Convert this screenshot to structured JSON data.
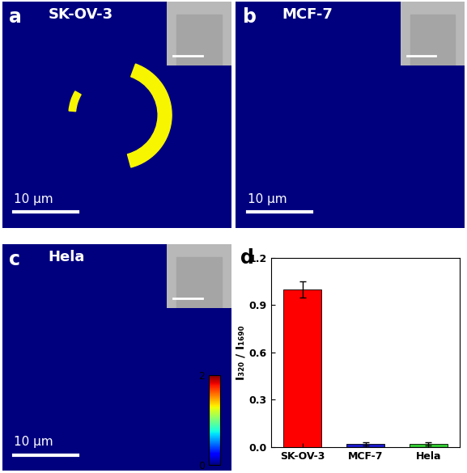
{
  "chart_data": [
    {
      "type": "heatmap",
      "panel": "a",
      "title": "SK-OV-3",
      "scale_bar": "10 μm",
      "signal": 1.3
    },
    {
      "type": "heatmap",
      "panel": "b",
      "title": "MCF-7",
      "scale_bar": "10 μm",
      "signal": null
    },
    {
      "type": "heatmap",
      "panel": "c",
      "title": "Hela",
      "scale_bar": "10 μm",
      "signal": null,
      "colorbar_range": [
        0,
        2
      ],
      "colorbar_ticks": [
        0,
        2
      ]
    },
    {
      "type": "bar",
      "panel": "d",
      "categories": [
        "SK-OV-3",
        "MCF-7",
        "Hela"
      ],
      "values": [
        1.0,
        0.02,
        0.02
      ],
      "errors": [
        0.05,
        0.01,
        0.01
      ],
      "colors": [
        "#ff0000",
        "#1a1acc",
        "#33cc33"
      ],
      "ylabel": "I₃₂₀ / I₁₆₉₀",
      "ylim": [
        0,
        1.2
      ],
      "yticks": [
        0.0,
        0.3,
        0.6,
        0.9,
        1.2
      ]
    }
  ]
}
